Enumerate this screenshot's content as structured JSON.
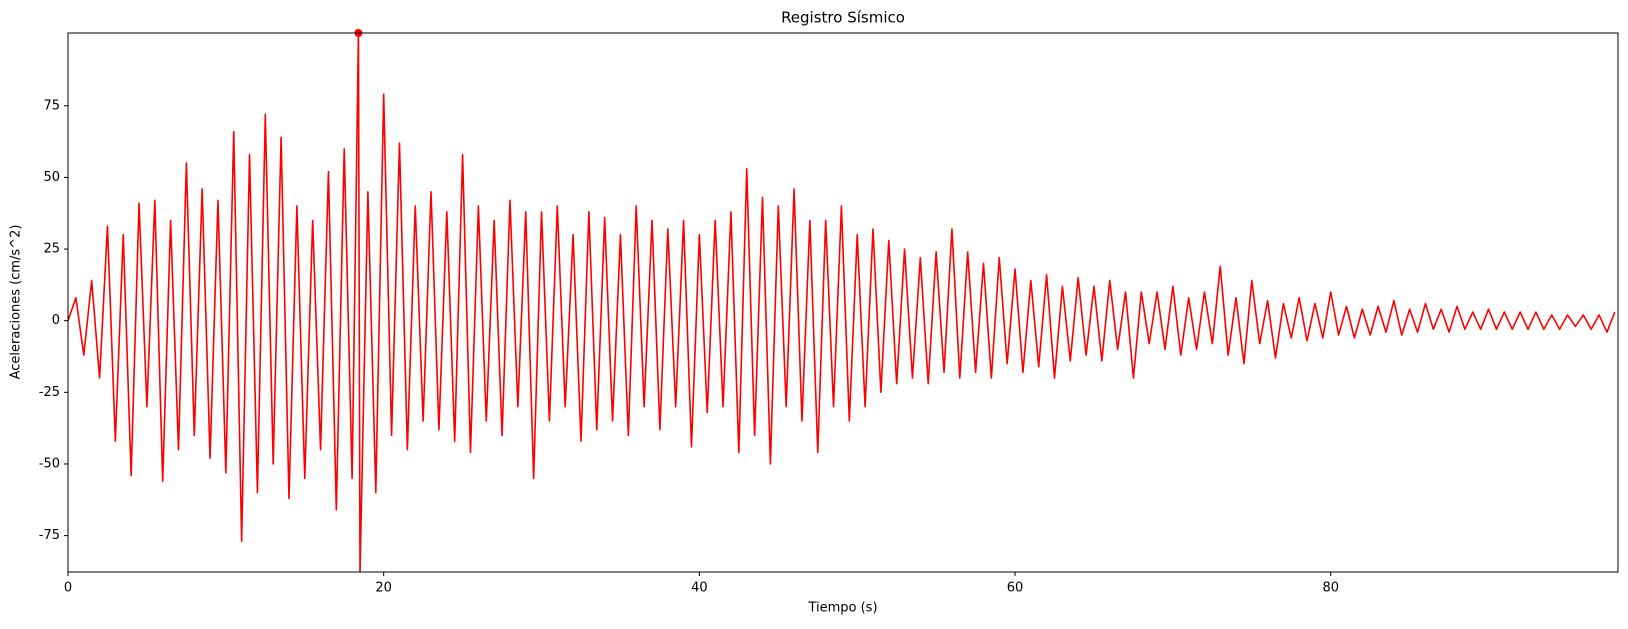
{
  "chart_data": {
    "type": "line",
    "title": "Registro Sísmico",
    "x_label": "Tiempo (s)",
    "y_label": "Aceleraciones (cm/s^2)",
    "x": [
      0,
      0.5,
      1,
      1.5,
      2,
      2.5,
      3,
      3.5,
      4,
      4.5,
      5,
      5.5,
      6,
      6.5,
      7,
      7.5,
      8,
      8.5,
      9,
      9.5,
      10,
      10.5,
      11,
      11.5,
      12,
      12.5,
      13,
      13.5,
      14,
      14.5,
      15,
      15.5,
      16,
      16.5,
      17,
      17.5,
      18,
      18.4,
      18.5,
      19,
      19.5,
      20,
      20.5,
      21,
      21.5,
      22,
      22.5,
      23,
      23.5,
      24,
      24.5,
      25,
      25.5,
      26,
      26.5,
      27,
      27.5,
      28,
      28.5,
      29,
      29.5,
      30,
      30.5,
      31,
      31.5,
      32,
      32.5,
      33,
      33.5,
      34,
      34.5,
      35,
      35.5,
      36,
      36.5,
      37,
      37.5,
      38,
      38.5,
      39,
      39.5,
      40,
      40.5,
      41,
      41.5,
      42,
      42.5,
      43,
      43.5,
      44,
      44.5,
      45,
      45.5,
      46,
      46.5,
      47,
      47.5,
      48,
      48.5,
      49,
      49.5,
      50,
      50.5,
      51,
      51.5,
      52,
      52.5,
      53,
      53.5,
      54,
      54.5,
      55,
      55.5,
      56,
      56.5,
      57,
      57.5,
      58,
      58.5,
      59,
      59.5,
      60,
      60.5,
      61,
      61.5,
      62,
      62.5,
      63,
      63.5,
      64,
      64.5,
      65,
      65.5,
      66,
      66.5,
      67,
      67.5,
      68,
      68.5,
      69,
      69.5,
      70,
      70.5,
      71,
      71.5,
      72,
      72.5,
      73,
      73.5,
      74,
      74.5,
      75,
      75.5,
      76,
      76.5,
      77,
      77.5,
      78,
      78.5,
      79,
      79.5,
      80,
      80.5,
      81,
      81.5,
      82,
      82.5,
      83,
      83.5,
      84,
      84.5,
      85,
      85.5,
      86,
      86.5,
      87,
      87.5,
      88,
      88.5,
      89,
      89.5,
      90,
      90.5,
      91,
      91.5,
      92,
      92.5,
      93,
      93.5,
      94,
      94.5,
      95,
      95.5,
      96,
      96.5,
      97,
      97.5,
      98
    ],
    "series": [
      {
        "color": "#ff0000",
        "values": [
          0,
          8,
          -12,
          14,
          -20,
          33,
          -42,
          30,
          -54,
          41,
          -30,
          42,
          -56,
          35,
          -45,
          55,
          -40,
          46,
          -48,
          42,
          -53,
          66,
          -77,
          58,
          -60,
          72,
          -50,
          64,
          -62,
          40,
          -55,
          35,
          -45,
          52,
          -66,
          60,
          -55,
          100.4,
          -87.7,
          45,
          -60,
          79,
          -40,
          62,
          -45,
          40,
          -35,
          45,
          -38,
          38,
          -42,
          58,
          -46,
          40,
          -35,
          35,
          -40,
          42,
          -30,
          38,
          -55,
          38,
          -35,
          40,
          -30,
          30,
          -42,
          38,
          -38,
          36,
          -35,
          30,
          -40,
          40,
          -30,
          35,
          -38,
          32,
          -30,
          35,
          -44,
          30,
          -32,
          35,
          -30,
          38,
          -46,
          53,
          -40,
          43,
          -50,
          40,
          -30,
          46,
          -35,
          35,
          -46,
          35,
          -30,
          40,
          -35,
          30,
          -30,
          32,
          -25,
          28,
          -22,
          25,
          -20,
          22,
          -22,
          24,
          -18,
          32,
          -20,
          24,
          -18,
          20,
          -20,
          22,
          -15,
          18,
          -18,
          14,
          -16,
          16,
          -20,
          12,
          -14,
          15,
          -12,
          12,
          -14,
          14,
          -10,
          10,
          -20,
          10,
          -8,
          10,
          -10,
          12,
          -12,
          8,
          -10,
          10,
          -8,
          19,
          -12,
          8,
          -15,
          14,
          -8,
          7,
          -13,
          6,
          -6,
          8,
          -7,
          6,
          -6,
          10,
          -5,
          5,
          -6,
          4,
          -5,
          5,
          -4,
          7,
          -5,
          4,
          -4,
          6,
          -3,
          4,
          -4,
          5,
          -3,
          3,
          -3,
          4,
          -3,
          3,
          -3,
          3,
          -3,
          3,
          -3,
          2,
          -3,
          2,
          -2,
          2,
          -3,
          2,
          -4,
          3
        ]
      }
    ],
    "marker": {
      "x": 18.4,
      "y": 100.4,
      "color": "#ff0000"
    },
    "xlim": [
      0,
      98.2
    ],
    "ylim": [
      -87.7,
      100.4
    ],
    "xticks": [
      0,
      20,
      40,
      60,
      80
    ],
    "yticks": [
      -75,
      -50,
      -25,
      0,
      25,
      50,
      75
    ],
    "grid": false
  }
}
